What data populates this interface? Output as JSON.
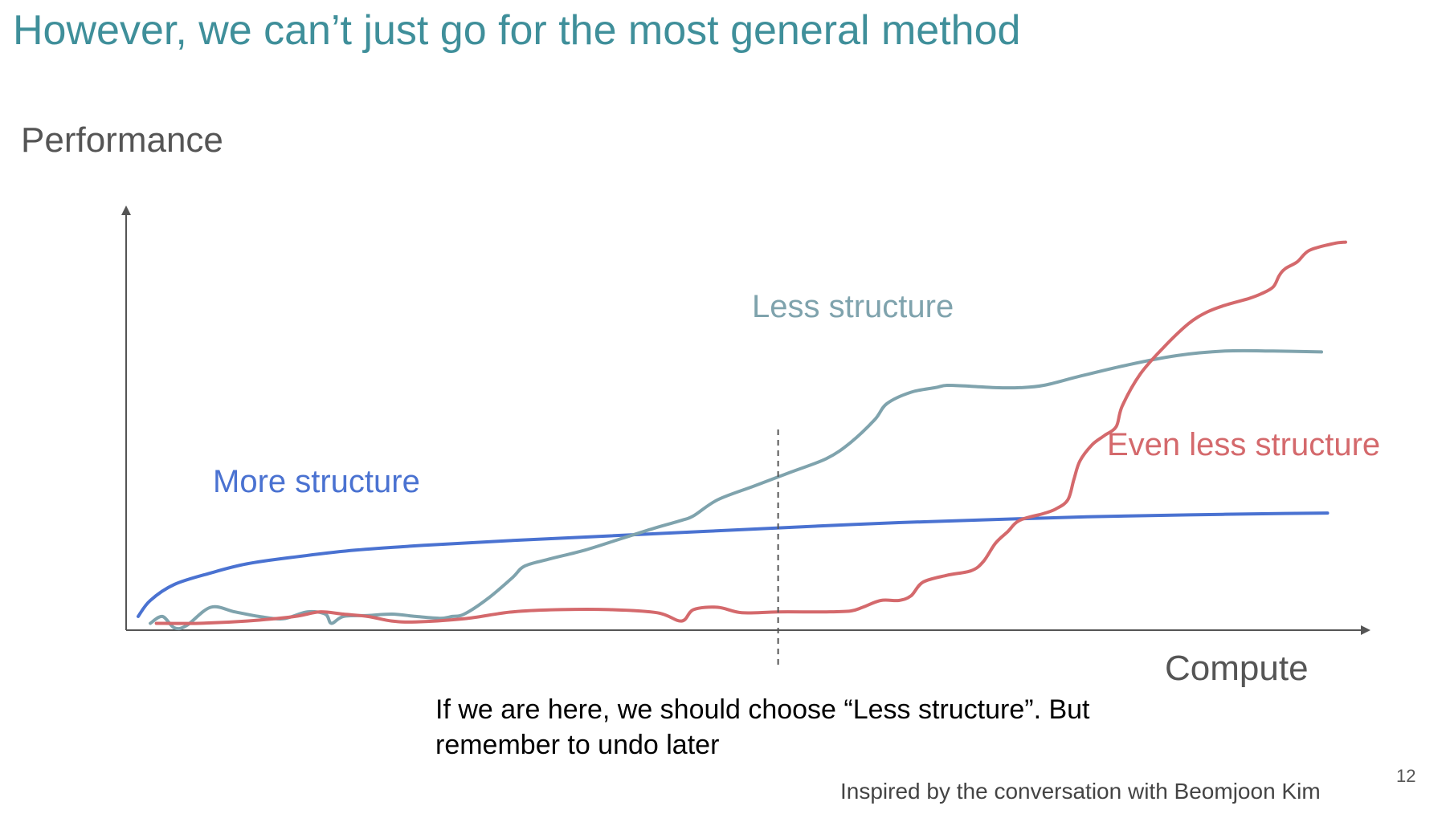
{
  "slide": {
    "title": "However, we can’t just go for the most general method",
    "annotation_line1": "If we are here, we should choose “Less structure”. But",
    "annotation_line2": "remember to undo later",
    "footnote": "Inspired by the conversation with Beomjoon Kim",
    "page_number": "12"
  },
  "chart_data": {
    "type": "line",
    "title": "However, we can’t just go for the most general method",
    "xlabel": "Compute",
    "ylabel": "Performance",
    "xlim": [
      0,
      100
    ],
    "ylim": [
      0,
      100
    ],
    "grid": false,
    "ticks": "none",
    "annotations": [
      {
        "type": "vertical-dashed-line",
        "x": 54,
        "text": "If we are here, we should choose “Less structure”. But remember to undo later"
      }
    ],
    "series": [
      {
        "name": "More structure",
        "color": "#4a72d1",
        "points": [
          [
            1,
            3
          ],
          [
            2,
            6.5
          ],
          [
            4,
            10
          ],
          [
            7,
            12.5
          ],
          [
            10,
            14.5
          ],
          [
            14,
            16
          ],
          [
            19,
            17.5
          ],
          [
            25,
            18.6
          ],
          [
            32,
            19.6
          ],
          [
            40,
            20.6
          ],
          [
            48,
            21.6
          ],
          [
            56,
            22.6
          ],
          [
            64,
            23.5
          ],
          [
            72,
            24.2
          ],
          [
            80,
            24.8
          ],
          [
            88,
            25.2
          ],
          [
            96,
            25.5
          ],
          [
            99.5,
            25.6
          ]
        ]
      },
      {
        "name": "Less structure",
        "color": "#7fa3ad",
        "points": [
          [
            2,
            1.5
          ],
          [
            3,
            3
          ],
          [
            4,
            0.5
          ],
          [
            5,
            1
          ],
          [
            7,
            5
          ],
          [
            9,
            4
          ],
          [
            11,
            3
          ],
          [
            13,
            2.5
          ],
          [
            15,
            4
          ],
          [
            16.5,
            3.5
          ],
          [
            17,
            1.5
          ],
          [
            18,
            3
          ],
          [
            20,
            3.2
          ],
          [
            22,
            3.5
          ],
          [
            24,
            3
          ],
          [
            26,
            2.6
          ],
          [
            27,
            3
          ],
          [
            28,
            3.5
          ],
          [
            30,
            7
          ],
          [
            32,
            11.5
          ],
          [
            33,
            14
          ],
          [
            35,
            15.5
          ],
          [
            38,
            17.5
          ],
          [
            41,
            20
          ],
          [
            44,
            22.5
          ],
          [
            46,
            24
          ],
          [
            47,
            25
          ],
          [
            49,
            28.5
          ],
          [
            52,
            31.5
          ],
          [
            55,
            34.5
          ],
          [
            58,
            37.5
          ],
          [
            60,
            41
          ],
          [
            62,
            46
          ],
          [
            63,
            49.5
          ],
          [
            65,
            52
          ],
          [
            67,
            53
          ],
          [
            68,
            53.5
          ],
          [
            70,
            53.3
          ],
          [
            72,
            53
          ],
          [
            74,
            53
          ],
          [
            76,
            53.5
          ],
          [
            79,
            55.5
          ],
          [
            83,
            58
          ],
          [
            87,
            60
          ],
          [
            91,
            61
          ],
          [
            95,
            61
          ],
          [
            99,
            60.8
          ]
        ]
      },
      {
        "name": "Even less structure",
        "color": "#d4696c",
        "points": [
          [
            2.5,
            1.5
          ],
          [
            6,
            1.5
          ],
          [
            10,
            2
          ],
          [
            14,
            3
          ],
          [
            16,
            4
          ],
          [
            18,
            3.5
          ],
          [
            20,
            3
          ],
          [
            22,
            2
          ],
          [
            24,
            1.8
          ],
          [
            28,
            2.5
          ],
          [
            32,
            4
          ],
          [
            36,
            4.5
          ],
          [
            40,
            4.5
          ],
          [
            44,
            3.8
          ],
          [
            46,
            2
          ],
          [
            47,
            4.5
          ],
          [
            49,
            5
          ],
          [
            51,
            3.8
          ],
          [
            54,
            4
          ],
          [
            58,
            4
          ],
          [
            60,
            4.2
          ],
          [
            61,
            5
          ],
          [
            62.5,
            6.5
          ],
          [
            64,
            6.5
          ],
          [
            65,
            7.5
          ],
          [
            66,
            10.5
          ],
          [
            68,
            12
          ],
          [
            70,
            13
          ],
          [
            71,
            15
          ],
          [
            72,
            19
          ],
          [
            73,
            21.5
          ],
          [
            74,
            24
          ],
          [
            76,
            25.5
          ],
          [
            77,
            26.5
          ],
          [
            78,
            28.5
          ],
          [
            78.5,
            33
          ],
          [
            79,
            37
          ],
          [
            80,
            40.5
          ],
          [
            81,
            42.5
          ],
          [
            82,
            44.5
          ],
          [
            82.5,
            49
          ],
          [
            84,
            56
          ],
          [
            86,
            62
          ],
          [
            88,
            67
          ],
          [
            89.5,
            69.5
          ],
          [
            91,
            71
          ],
          [
            93,
            72.5
          ],
          [
            94,
            73.5
          ],
          [
            95,
            75
          ],
          [
            95.5,
            77.5
          ],
          [
            96,
            79
          ],
          [
            97,
            80.5
          ],
          [
            98,
            83
          ],
          [
            100,
            84.5
          ],
          [
            101,
            84.8
          ]
        ]
      }
    ]
  }
}
